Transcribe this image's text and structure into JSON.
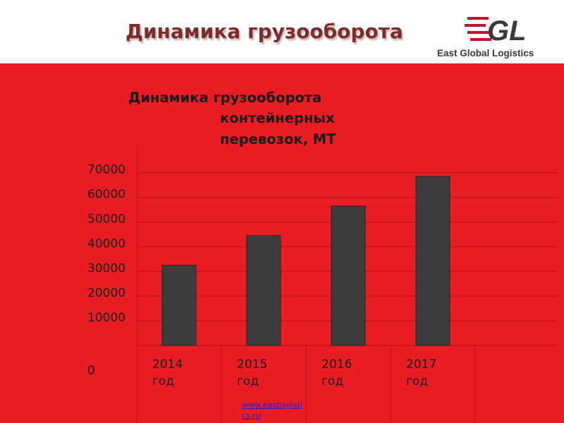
{
  "slide": {
    "title": "Динамика грузооборота"
  },
  "logo": {
    "mark_text": "GL",
    "company_name": "East Global Logistics",
    "accent_color": "#c8102e"
  },
  "chart_data": {
    "type": "bar",
    "title_lines": [
      "Динамика грузооборота",
      "контейнерных",
      "перевозок, МТ"
    ],
    "categories": [
      "2014",
      "2015",
      "2016",
      "2017"
    ],
    "category_suffix": "год",
    "values": [
      32500,
      44500,
      56500,
      68500
    ],
    "ylim": [
      0,
      70000
    ],
    "yticks": [
      "0",
      "10000",
      "20000",
      "30000",
      "40000",
      "50000",
      "60000",
      "70000"
    ],
    "bar_color": "#3d3d3d",
    "background_color": "#ea1c24",
    "grid": true
  },
  "footer": {
    "link_line1": "www.eastlogisti",
    "link_line2": "cs.ru"
  }
}
